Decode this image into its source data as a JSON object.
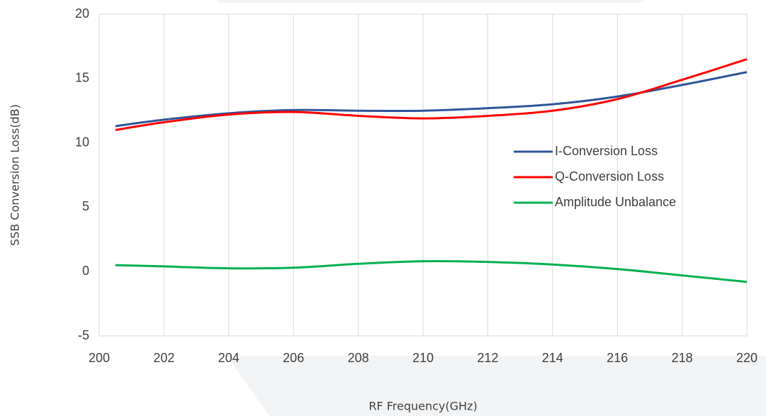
{
  "chart_data": {
    "type": "line",
    "x_label": "RF Frequency(GHz)",
    "y_label": "SSB Conversion Loss(dB)",
    "x": [
      200.5,
      202,
      204,
      206,
      208,
      210,
      212,
      214,
      216,
      218,
      220
    ],
    "series": [
      {
        "name": "I-Conversion Loss",
        "color": "#2f5597",
        "values": [
          11.3,
          11.8,
          12.3,
          12.55,
          12.5,
          12.5,
          12.7,
          13.0,
          13.6,
          14.5,
          15.5
        ]
      },
      {
        "name": "Q-Conversion Loss",
        "color": "#ff0000",
        "values": [
          11.0,
          11.6,
          12.2,
          12.4,
          12.1,
          11.9,
          12.1,
          12.5,
          13.4,
          14.9,
          16.5
        ]
      },
      {
        "name": "Amplitude Unbalance",
        "color": "#00b050",
        "values": [
          0.5,
          0.4,
          0.25,
          0.3,
          0.6,
          0.8,
          0.75,
          0.55,
          0.2,
          -0.3,
          -0.8
        ]
      }
    ],
    "xlim": [
      200,
      220
    ],
    "xticks": [
      200,
      202,
      204,
      206,
      208,
      210,
      212,
      214,
      216,
      218,
      220
    ],
    "ylim": [
      -5,
      20
    ],
    "yticks": [
      -5,
      0,
      5,
      10,
      15,
      20
    ],
    "grid": "x",
    "legend": "center right"
  }
}
